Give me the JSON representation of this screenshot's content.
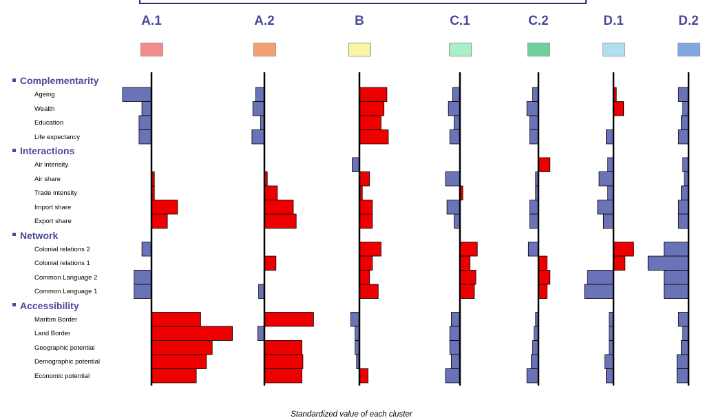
{
  "chart_data": {
    "type": "bar",
    "orientation": "horizontal",
    "xlabel": "Standardized value of each cluster",
    "clusters": [
      {
        "name": "A.1",
        "color": "#f28b8b"
      },
      {
        "name": "A.2",
        "color": "#f5a070"
      },
      {
        "name": "B",
        "color": "#fbf4a0"
      },
      {
        "name": "C.1",
        "color": "#a8f0c8"
      },
      {
        "name": "C.2",
        "color": "#6fcf9a"
      },
      {
        "name": "D.1",
        "color": "#b0dff0"
      },
      {
        "name": "D.2",
        "color": "#7fa8e0"
      }
    ],
    "groups": [
      {
        "name": "Complementarity",
        "variables": [
          "Ageing",
          "Wealth",
          "Education",
          "Life expectancy"
        ]
      },
      {
        "name": "Interactions",
        "variables": [
          "Air intensity",
          "Air share",
          "Trade intensity",
          "Import share",
          "Export share"
        ]
      },
      {
        "name": "Network",
        "variables": [
          "Colonial relations 2",
          "Colonial relations 1",
          "Common Language 2",
          "Common Language 1"
        ]
      },
      {
        "name": "Accessibility",
        "variables": [
          "Maritim Border",
          "Land Border",
          "Geographic potential",
          "Demographic potential",
          "Economic potential"
        ]
      }
    ],
    "variables": [
      "Ageing",
      "Wealth",
      "Education",
      "Life expectancy",
      "Air intensity",
      "Air share",
      "Trade intensity",
      "Import share",
      "Export share",
      "Colonial relations 2",
      "Colonial relations 1",
      "Common Language 2",
      "Common Language 1",
      "Maritim Border",
      "Land Border",
      "Geographic potential",
      "Demographic potential",
      "Economic potential"
    ],
    "series": [
      {
        "name": "A.1",
        "values": [
          -1.0,
          -0.33,
          -0.43,
          -0.43,
          0.0,
          0.1,
          0.1,
          0.9,
          0.55,
          -0.33,
          0.0,
          -0.6,
          -0.6,
          1.7,
          2.8,
          2.1,
          1.9,
          1.55
        ]
      },
      {
        "name": "A.2",
        "values": [
          -0.3,
          -0.4,
          -0.13,
          -0.43,
          0.0,
          0.1,
          0.45,
          1.0,
          1.1,
          0.0,
          0.4,
          0.0,
          -0.2,
          1.7,
          -0.23,
          1.3,
          1.33,
          1.3
        ]
      },
      {
        "name": "B",
        "values": [
          0.95,
          0.85,
          0.75,
          1.0,
          -0.25,
          0.35,
          0.1,
          0.45,
          0.45,
          0.75,
          0.45,
          0.35,
          0.65,
          -0.3,
          -0.15,
          -0.15,
          -0.1,
          0.3
        ]
      },
      {
        "name": "C.1",
        "values": [
          -0.25,
          -0.4,
          -0.2,
          -0.35,
          0.0,
          -0.5,
          0.1,
          -0.45,
          -0.2,
          0.6,
          0.35,
          0.55,
          0.5,
          -0.3,
          -0.35,
          -0.35,
          -0.3,
          -0.5
        ]
      },
      {
        "name": "C.2",
        "values": [
          -0.2,
          -0.4,
          -0.3,
          -0.3,
          0.4,
          -0.1,
          -0.1,
          -0.3,
          -0.3,
          -0.35,
          0.3,
          0.4,
          0.3,
          -0.1,
          -0.15,
          -0.2,
          -0.25,
          -0.4
        ]
      },
      {
        "name": "D.1",
        "values": [
          0.1,
          0.35,
          0.0,
          -0.25,
          -0.2,
          -0.5,
          -0.2,
          -0.55,
          -0.35,
          0.7,
          0.4,
          -0.9,
          -1.0,
          -0.15,
          -0.15,
          -0.15,
          -0.3,
          -0.25
        ]
      },
      {
        "name": "D.2",
        "values": [
          -0.35,
          -0.2,
          -0.25,
          -0.35,
          -0.2,
          -0.15,
          -0.25,
          -0.35,
          -0.35,
          -0.85,
          -1.4,
          -0.85,
          -0.85,
          -0.35,
          -0.2,
          -0.25,
          -0.4,
          -0.4
        ]
      }
    ],
    "positive_color": "#ee0000",
    "negative_color": "#6b73b8"
  }
}
